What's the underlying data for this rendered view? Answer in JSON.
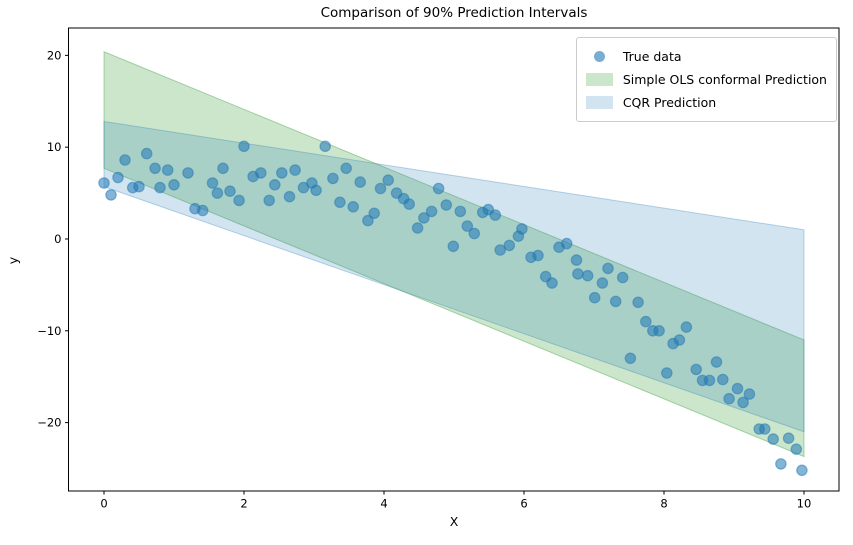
{
  "chart_data": {
    "type": "scatter",
    "title": "Comparison of 90% Prediction Intervals",
    "xlabel": "X",
    "ylabel": "y",
    "xlim": [
      -0.507,
      10.5
    ],
    "ylim": [
      -27.45,
      22.98
    ],
    "x_ticks": [
      0,
      2,
      4,
      6,
      8,
      10
    ],
    "y_ticks": [
      20,
      10,
      0,
      -10,
      -20
    ],
    "grid": false,
    "legend_position": "upper right",
    "legend": [
      {
        "label": "True data",
        "type": "marker",
        "color": "#1f77b4",
        "alpha": 0.6
      },
      {
        "label": "Simple OLS conformal Prediction",
        "type": "patch",
        "color": "#008000",
        "alpha": 0.2
      },
      {
        "label": "CQR Prediction",
        "type": "patch",
        "color": "#1f77b4",
        "alpha": 0.2
      }
    ],
    "bands": [
      {
        "name": "Simple OLS conformal Prediction",
        "color": "#008000",
        "alpha": 0.2,
        "x": [
          0,
          10
        ],
        "upper": [
          20.4,
          -11.0
        ],
        "lower": [
          7.7,
          -23.7
        ]
      },
      {
        "name": "CQR Prediction",
        "color": "#1f77b4",
        "alpha": 0.2,
        "x": [
          0,
          10
        ],
        "upper": [
          12.8,
          1.0
        ],
        "lower": [
          5.7,
          -21.0
        ]
      }
    ],
    "marker": {
      "color": "#1f77b4",
      "alpha": 0.55,
      "radius": 5.2
    },
    "points": [
      [
        0.0,
        6.1
      ],
      [
        0.1,
        4.8
      ],
      [
        0.2,
        6.7
      ],
      [
        0.3,
        8.6
      ],
      [
        0.41,
        5.6
      ],
      [
        0.5,
        5.7
      ],
      [
        0.61,
        9.3
      ],
      [
        0.73,
        7.7
      ],
      [
        0.8,
        5.6
      ],
      [
        0.91,
        7.5
      ],
      [
        1.0,
        5.9
      ],
      [
        1.2,
        7.2
      ],
      [
        1.3,
        3.3
      ],
      [
        1.41,
        3.1
      ],
      [
        1.55,
        6.1
      ],
      [
        1.62,
        5.0
      ],
      [
        1.7,
        7.7
      ],
      [
        1.8,
        5.2
      ],
      [
        1.93,
        4.2
      ],
      [
        2.0,
        10.1
      ],
      [
        2.13,
        6.8
      ],
      [
        2.24,
        7.2
      ],
      [
        2.36,
        4.2
      ],
      [
        2.44,
        5.9
      ],
      [
        2.54,
        7.2
      ],
      [
        2.65,
        4.6
      ],
      [
        2.73,
        7.5
      ],
      [
        2.85,
        5.6
      ],
      [
        2.97,
        6.1
      ],
      [
        3.03,
        5.3
      ],
      [
        3.16,
        10.1
      ],
      [
        3.27,
        6.6
      ],
      [
        3.37,
        4.0
      ],
      [
        3.46,
        7.7
      ],
      [
        3.56,
        3.5
      ],
      [
        3.66,
        6.2
      ],
      [
        3.77,
        2.0
      ],
      [
        3.86,
        2.8
      ],
      [
        3.95,
        5.5
      ],
      [
        4.06,
        6.4
      ],
      [
        4.18,
        5.0
      ],
      [
        4.28,
        4.4
      ],
      [
        4.36,
        3.8
      ],
      [
        4.48,
        1.2
      ],
      [
        4.57,
        2.3
      ],
      [
        4.68,
        3.0
      ],
      [
        4.78,
        5.5
      ],
      [
        4.89,
        3.7
      ],
      [
        4.99,
        -0.8
      ],
      [
        5.09,
        3.0
      ],
      [
        5.19,
        1.4
      ],
      [
        5.29,
        0.6
      ],
      [
        5.41,
        2.9
      ],
      [
        5.49,
        3.2
      ],
      [
        5.59,
        2.6
      ],
      [
        5.66,
        -1.2
      ],
      [
        5.79,
        -0.7
      ],
      [
        5.92,
        0.3
      ],
      [
        5.97,
        1.1
      ],
      [
        6.1,
        -2.0
      ],
      [
        6.2,
        -1.8
      ],
      [
        6.31,
        -4.1
      ],
      [
        6.4,
        -4.8
      ],
      [
        6.5,
        -0.9
      ],
      [
        6.61,
        -0.5
      ],
      [
        6.75,
        -2.3
      ],
      [
        6.77,
        -3.8
      ],
      [
        6.91,
        -4.0
      ],
      [
        7.01,
        -6.4
      ],
      [
        7.12,
        -4.8
      ],
      [
        7.2,
        -3.2
      ],
      [
        7.31,
        -6.8
      ],
      [
        7.41,
        -4.2
      ],
      [
        7.52,
        -13.0
      ],
      [
        7.63,
        -6.9
      ],
      [
        7.74,
        -9.0
      ],
      [
        7.84,
        -10.0
      ],
      [
        7.93,
        -10.0
      ],
      [
        8.04,
        -14.6
      ],
      [
        8.13,
        -11.4
      ],
      [
        8.22,
        -11.0
      ],
      [
        8.32,
        -9.6
      ],
      [
        8.46,
        -14.2
      ],
      [
        8.55,
        -15.4
      ],
      [
        8.65,
        -15.4
      ],
      [
        8.75,
        -13.4
      ],
      [
        8.84,
        -15.3
      ],
      [
        8.93,
        -17.4
      ],
      [
        9.05,
        -16.3
      ],
      [
        9.13,
        -17.8
      ],
      [
        9.22,
        -16.9
      ],
      [
        9.36,
        -20.7
      ],
      [
        9.44,
        -20.7
      ],
      [
        9.56,
        -21.8
      ],
      [
        9.67,
        -24.5
      ],
      [
        9.78,
        -21.7
      ],
      [
        9.89,
        -22.9
      ],
      [
        9.97,
        -25.2
      ]
    ]
  }
}
